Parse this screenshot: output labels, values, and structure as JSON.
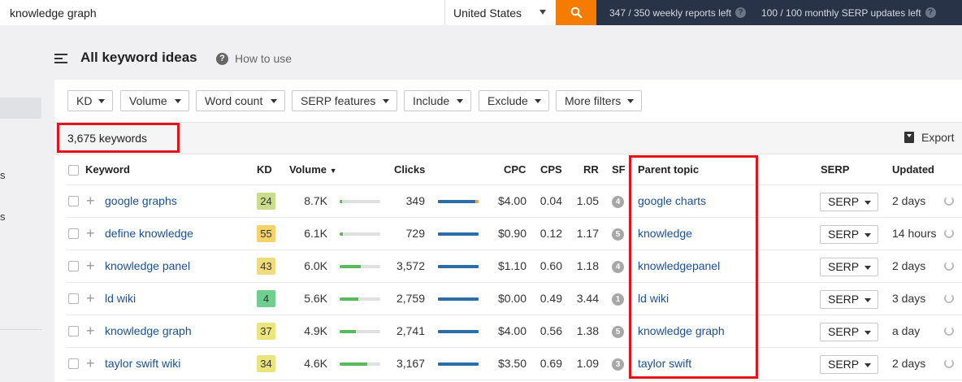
{
  "search": {
    "query": "knowledge graph",
    "country": "United States"
  },
  "top": {
    "weekly_reports": "347 / 350 weekly reports left",
    "monthly_serp": "100 / 100 monthly SERP updates left"
  },
  "header": {
    "title": "All keyword ideas",
    "how_to": "How to use"
  },
  "sidebar": {
    "items": [
      "s",
      "s"
    ]
  },
  "filters": [
    "KD",
    "Volume",
    "Word count",
    "SERP features",
    "Include",
    "Exclude",
    "More filters"
  ],
  "results": {
    "count": "3,675 keywords",
    "export": "Export"
  },
  "table": {
    "headers": {
      "keyword": "Keyword",
      "kd": "KD",
      "volume": "Volume",
      "clicks": "Clicks",
      "cpc": "CPC",
      "cps": "CPS",
      "rr": "RR",
      "sf": "SF",
      "parent": "Parent topic",
      "serp": "SERP",
      "updated": "Updated"
    },
    "rows": [
      {
        "keyword": "google graphs",
        "kd": "24",
        "kd_color": "#c9dd8a",
        "volume": "8.7K",
        "volume_fill": 0.06,
        "clicks": "349",
        "clicks_fill": 0.92,
        "cpc": "$4.00",
        "cps": "0.04",
        "rr": "1.05",
        "sf": "4",
        "parent": "google charts",
        "serp": "SERP",
        "updated": "2 days"
      },
      {
        "keyword": "define knowledge",
        "kd": "55",
        "kd_color": "#f5d26a",
        "volume": "6.1K",
        "volume_fill": 0.08,
        "clicks": "729",
        "clicks_fill": 1.0,
        "cpc": "$0.90",
        "cps": "0.12",
        "rr": "1.17",
        "sf": "5",
        "parent": "knowledge",
        "serp": "SERP",
        "updated": "14 hours"
      },
      {
        "keyword": "knowledge panel",
        "kd": "43",
        "kd_color": "#f1dc7d",
        "volume": "6.0K",
        "volume_fill": 0.52,
        "clicks": "3,572",
        "clicks_fill": 1.0,
        "cpc": "$1.10",
        "cps": "0.60",
        "rr": "1.18",
        "sf": "4",
        "parent": "knowledgepanel",
        "serp": "SERP",
        "updated": "2 days"
      },
      {
        "keyword": "ld wiki",
        "kd": "4",
        "kd_color": "#6fcf8e",
        "volume": "5.6K",
        "volume_fill": 0.46,
        "clicks": "2,759",
        "clicks_fill": 1.0,
        "cpc": "$0.00",
        "cps": "0.49",
        "rr": "3.44",
        "sf": "1",
        "parent": "ld wiki",
        "serp": "SERP",
        "updated": "3 days"
      },
      {
        "keyword": "knowledge graph",
        "kd": "37",
        "kd_color": "#ece47c",
        "volume": "4.9K",
        "volume_fill": 0.4,
        "clicks": "2,741",
        "clicks_fill": 1.0,
        "cpc": "$4.00",
        "cps": "0.56",
        "rr": "1.38",
        "sf": "5",
        "parent": "knowledge graph",
        "serp": "SERP",
        "updated": "a day"
      },
      {
        "keyword": "taylor swift wiki",
        "kd": "34",
        "kd_color": "#e9e57c",
        "volume": "4.6K",
        "volume_fill": 0.68,
        "clicks": "3,167",
        "clicks_fill": 1.0,
        "cpc": "$3.50",
        "cps": "0.69",
        "rr": "1.09",
        "sf": "3",
        "parent": "taylor swift",
        "serp": "SERP",
        "updated": "2 days"
      }
    ]
  },
  "colors": {
    "topbar": "#283347",
    "accent": "#f57c00",
    "link": "#1a4f9c",
    "highlight": "#e5121b",
    "volume_bar": "#5cb85c",
    "clicks_bar": "#2c6ea5"
  }
}
